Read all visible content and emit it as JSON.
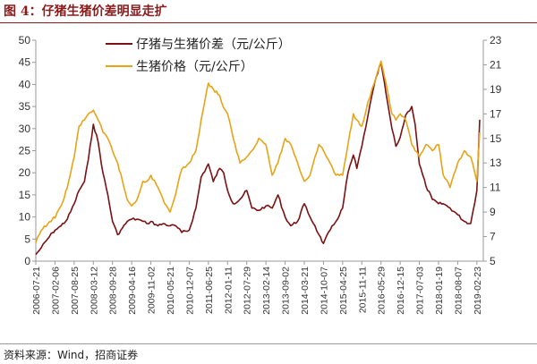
{
  "header": {
    "title": "图 4：仔猪生猪价差明显走扩"
  },
  "footer": {
    "source": "资料来源：Wind，招商证券"
  },
  "colors": {
    "title": "#8B1A1A",
    "spread_line": "#7B1113",
    "price_line": "#E8A317"
  },
  "chart_data": {
    "type": "line",
    "title": "",
    "legend_position": "top-left",
    "grid": false,
    "x_categories": [
      "2006-07-21",
      "2007-02-06",
      "2007-08-25",
      "2008-03-12",
      "2008-09-28",
      "2009-04-16",
      "2009-11-02",
      "2010-05-21",
      "2010-12-07",
      "2011-06-25",
      "2012-01-11",
      "2012-07-29",
      "2013-02-14",
      "2013-09-02",
      "2014-03-21",
      "2014-10-07",
      "2015-04-25",
      "2015-11-11",
      "2016-05-29",
      "2016-12-15",
      "2017-07-03",
      "2018-01-19",
      "2018-08-07",
      "2019-02-23"
    ],
    "y_left": {
      "ticks": [
        0,
        5,
        10,
        15,
        20,
        25,
        30,
        35,
        40,
        45,
        50
      ],
      "range": [
        0,
        50
      ]
    },
    "y_right": {
      "ticks": [
        5,
        7,
        9,
        11,
        13,
        15,
        17,
        19,
        21,
        23
      ],
      "range": [
        5,
        23
      ]
    },
    "series": [
      {
        "name": "仔猪与生猪价差（元/公斤）",
        "axis": "left",
        "points": [
          [
            "2006-07-21",
            1.5
          ],
          [
            "2006-09-15",
            3
          ],
          [
            "2006-11-20",
            5
          ],
          [
            "2007-01-15",
            6.5
          ],
          [
            "2007-02-06",
            7
          ],
          [
            "2007-04-10",
            8
          ],
          [
            "2007-06-15",
            9.5
          ],
          [
            "2007-08-25",
            13
          ],
          [
            "2007-10-15",
            16
          ],
          [
            "2007-12-10",
            18
          ],
          [
            "2008-01-20",
            23
          ],
          [
            "2008-03-12",
            31
          ],
          [
            "2008-05-01",
            27
          ],
          [
            "2008-06-20",
            20
          ],
          [
            "2008-08-10",
            15
          ],
          [
            "2008-09-28",
            9
          ],
          [
            "2008-11-20",
            6
          ],
          [
            "2009-01-10",
            7.5
          ],
          [
            "2009-03-01",
            9
          ],
          [
            "2009-04-16",
            9.5
          ],
          [
            "2009-06-10",
            9.5
          ],
          [
            "2009-08-10",
            9
          ],
          [
            "2009-09-20",
            8.5
          ],
          [
            "2009-11-02",
            9
          ],
          [
            "2010-01-15",
            8
          ],
          [
            "2010-03-10",
            8.5
          ],
          [
            "2010-05-21",
            8
          ],
          [
            "2010-07-20",
            8
          ],
          [
            "2010-09-20",
            6.5
          ],
          [
            "2010-12-07",
            7
          ],
          [
            "2011-02-15",
            12
          ],
          [
            "2011-04-10",
            19
          ],
          [
            "2011-06-25",
            22
          ],
          [
            "2011-08-15",
            18
          ],
          [
            "2011-10-20",
            21
          ],
          [
            "2011-12-01",
            20
          ],
          [
            "2012-01-11",
            16
          ],
          [
            "2012-03-10",
            13
          ],
          [
            "2012-05-20",
            14
          ],
          [
            "2012-07-29",
            16
          ],
          [
            "2012-09-20",
            12
          ],
          [
            "2012-12-01",
            11.5
          ],
          [
            "2013-02-14",
            12.5
          ],
          [
            "2013-04-20",
            12
          ],
          [
            "2013-06-20",
            15
          ],
          [
            "2013-09-02",
            10
          ],
          [
            "2013-11-01",
            8
          ],
          [
            "2014-01-10",
            9
          ],
          [
            "2014-03-21",
            13
          ],
          [
            "2014-05-20",
            10
          ],
          [
            "2014-07-10",
            8
          ],
          [
            "2014-08-20",
            6
          ],
          [
            "2014-10-07",
            4
          ],
          [
            "2014-12-15",
            7
          ],
          [
            "2015-02-15",
            9
          ],
          [
            "2015-04-25",
            12
          ],
          [
            "2015-06-20",
            20
          ],
          [
            "2015-08-15",
            24
          ],
          [
            "2015-09-20",
            21
          ],
          [
            "2015-11-11",
            26
          ],
          [
            "2016-01-15",
            33
          ],
          [
            "2016-03-20",
            40
          ],
          [
            "2016-05-29",
            45
          ],
          [
            "2016-07-20",
            38
          ],
          [
            "2016-09-20",
            30
          ],
          [
            "2016-11-01",
            26
          ],
          [
            "2016-12-15",
            28
          ],
          [
            "2017-02-10",
            33
          ],
          [
            "2017-04-15",
            35
          ],
          [
            "2017-05-20",
            31
          ],
          [
            "2017-07-03",
            22
          ],
          [
            "2017-09-10",
            17
          ],
          [
            "2017-11-15",
            14
          ],
          [
            "2018-01-19",
            13
          ],
          [
            "2018-03-10",
            13
          ],
          [
            "2018-05-20",
            12
          ],
          [
            "2018-08-07",
            10.5
          ],
          [
            "2018-10-15",
            9
          ],
          [
            "2018-12-20",
            8.5
          ],
          [
            "2019-02-23",
            16
          ],
          [
            "2019-03-25",
            32
          ]
        ]
      },
      {
        "name": "生猪价格（元/公斤）",
        "axis": "right",
        "points": [
          [
            "2006-07-21",
            6.5
          ],
          [
            "2006-09-15",
            7.5
          ],
          [
            "2006-11-20",
            8
          ],
          [
            "2007-01-15",
            8.5
          ],
          [
            "2007-02-06",
            8.5
          ],
          [
            "2007-04-10",
            9.5
          ],
          [
            "2007-06-15",
            11
          ],
          [
            "2007-08-25",
            13.5
          ],
          [
            "2007-10-15",
            16
          ],
          [
            "2007-12-10",
            16.5
          ],
          [
            "2008-01-20",
            17
          ],
          [
            "2008-03-12",
            17.3
          ],
          [
            "2008-05-01",
            16.5
          ],
          [
            "2008-06-20",
            15.5
          ],
          [
            "2008-08-10",
            15
          ],
          [
            "2008-09-28",
            14
          ],
          [
            "2008-11-20",
            13
          ],
          [
            "2009-01-10",
            11.5
          ],
          [
            "2009-03-01",
            10
          ],
          [
            "2009-04-16",
            9.5
          ],
          [
            "2009-06-10",
            10
          ],
          [
            "2009-08-10",
            11.5
          ],
          [
            "2009-09-20",
            11.5
          ],
          [
            "2009-11-02",
            12
          ],
          [
            "2010-01-15",
            11
          ],
          [
            "2010-03-10",
            10
          ],
          [
            "2010-05-21",
            9
          ],
          [
            "2010-07-20",
            10.5
          ],
          [
            "2010-09-20",
            12.5
          ],
          [
            "2010-12-07",
            13
          ],
          [
            "2011-02-15",
            14
          ],
          [
            "2011-04-10",
            16.5
          ],
          [
            "2011-06-25",
            19.5
          ],
          [
            "2011-08-15",
            19
          ],
          [
            "2011-10-20",
            18.5
          ],
          [
            "2011-12-01",
            17.5
          ],
          [
            "2012-01-11",
            17
          ],
          [
            "2012-03-10",
            15
          ],
          [
            "2012-05-20",
            13
          ],
          [
            "2012-07-29",
            13.5
          ],
          [
            "2012-09-20",
            14
          ],
          [
            "2012-12-01",
            15
          ],
          [
            "2013-02-14",
            14.5
          ],
          [
            "2013-04-20",
            12
          ],
          [
            "2013-06-20",
            13
          ],
          [
            "2013-09-02",
            15
          ],
          [
            "2013-11-01",
            14.5
          ],
          [
            "2014-01-10",
            13
          ],
          [
            "2014-03-21",
            11.5
          ],
          [
            "2014-05-20",
            12
          ],
          [
            "2014-07-10",
            13.5
          ],
          [
            "2014-08-20",
            14.5
          ],
          [
            "2014-10-07",
            14
          ],
          [
            "2014-12-15",
            13
          ],
          [
            "2015-02-15",
            12
          ],
          [
            "2015-04-25",
            12
          ],
          [
            "2015-06-20",
            14.5
          ],
          [
            "2015-08-15",
            17
          ],
          [
            "2015-09-20",
            16.5
          ],
          [
            "2015-11-11",
            16
          ],
          [
            "2016-01-15",
            18
          ],
          [
            "2016-03-20",
            19.5
          ],
          [
            "2016-05-29",
            21.3
          ],
          [
            "2016-07-20",
            19.5
          ],
          [
            "2016-09-20",
            17
          ],
          [
            "2016-11-01",
            16.5
          ],
          [
            "2016-12-15",
            17
          ],
          [
            "2017-02-10",
            16.5
          ],
          [
            "2017-04-15",
            14.5
          ],
          [
            "2017-05-20",
            14
          ],
          [
            "2017-07-03",
            13.5
          ],
          [
            "2017-09-10",
            14.5
          ],
          [
            "2017-11-15",
            14
          ],
          [
            "2018-01-19",
            14.5
          ],
          [
            "2018-03-10",
            12
          ],
          [
            "2018-05-20",
            11
          ],
          [
            "2018-08-07",
            13
          ],
          [
            "2018-10-15",
            14
          ],
          [
            "2018-12-20",
            13.5
          ],
          [
            "2019-02-23",
            11.5
          ],
          [
            "2019-03-25",
            15.5
          ]
        ]
      }
    ]
  }
}
